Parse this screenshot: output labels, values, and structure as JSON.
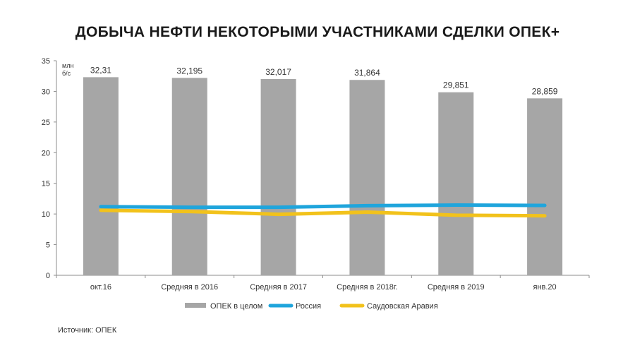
{
  "title": "ДОБЫЧА НЕФТИ НЕКОТОРЫМИ УЧАСТНИКАМИ СДЕЛКИ ОПЕК+",
  "source": "Источник: ОПЕК",
  "chart_data": {
    "type": "bar",
    "title": "ДОБЫЧА НЕФТИ НЕКОТОРЫМИ УЧАСТНИКАМИ СДЕЛКИ ОПЕК+",
    "unit_label": [
      "млн",
      "б/с"
    ],
    "categories": [
      "окт.16",
      "Средняя в 2016",
      "Средняя в 2017",
      "Средняя в 2018г.",
      "Средняя в 2019",
      "янв.20"
    ],
    "ylim": [
      0,
      35
    ],
    "yticks": [
      0,
      5,
      10,
      15,
      20,
      25,
      30,
      35
    ],
    "grid": false,
    "legend_position": "bottom",
    "series": [
      {
        "name": "ОПЕК в целом",
        "kind": "bar",
        "color": "#a6a6a6",
        "values": [
          32.31,
          32.195,
          32.017,
          31.864,
          29.851,
          28.859
        ],
        "labels": [
          "32,31",
          "32,195",
          "32,017",
          "31,864",
          "29,851",
          "28,859"
        ]
      },
      {
        "name": "Россия",
        "kind": "line",
        "color": "#1fa5dc",
        "values": [
          11.2,
          11.1,
          11.1,
          11.35,
          11.45,
          11.4
        ]
      },
      {
        "name": "Саудовская Аравия",
        "kind": "line",
        "color": "#f2c21b",
        "values": [
          10.6,
          10.4,
          9.95,
          10.3,
          9.8,
          9.7
        ]
      }
    ]
  }
}
